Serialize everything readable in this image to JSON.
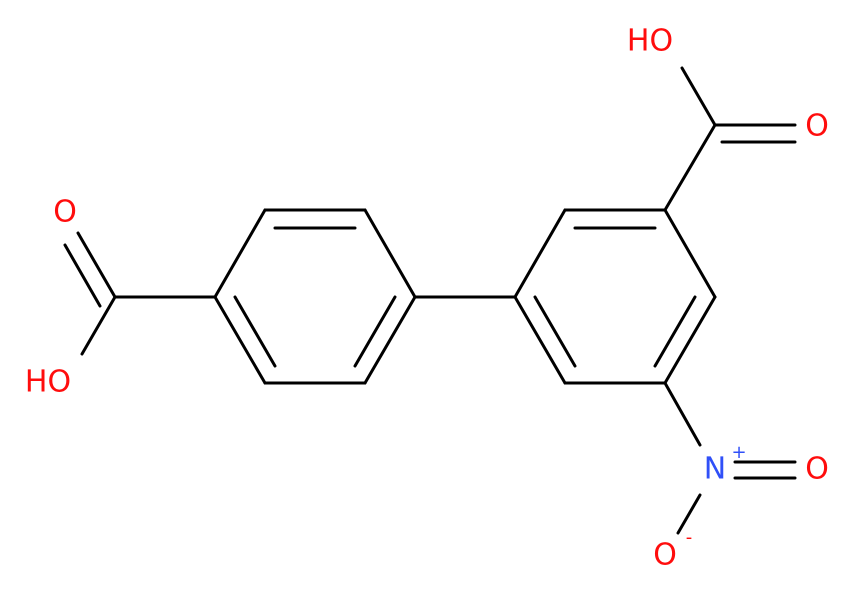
{
  "atoms": [
    {
      "label": "O"
    },
    {
      "label": "HO"
    },
    {
      "label": "HO"
    },
    {
      "label": "O"
    },
    {
      "label": "N",
      "charge": "+"
    },
    {
      "label": "O"
    },
    {
      "label": "O",
      "charge": "-"
    }
  ]
}
